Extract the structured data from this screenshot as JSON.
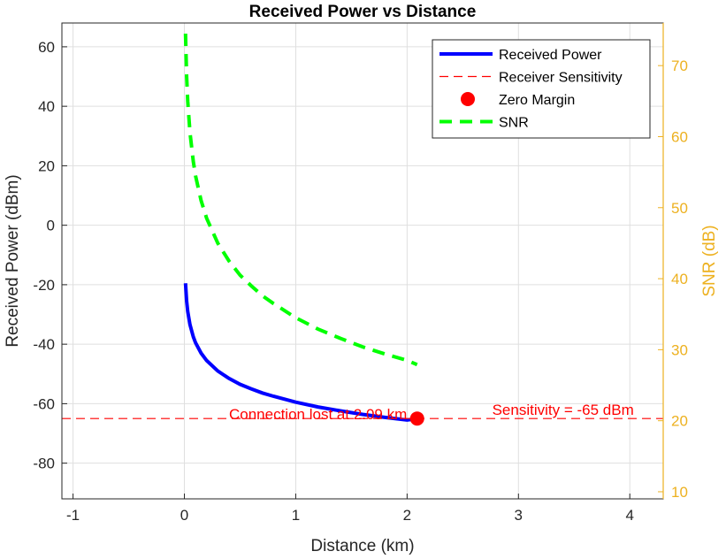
{
  "chart_data": {
    "type": "line",
    "title": "Received Power vs Distance",
    "xlabel": "Distance (km)",
    "ylabel": "Received Power (dBm)",
    "y2label": "SNR (dB)",
    "xlim": [
      -1.1,
      4.3
    ],
    "ylim": [
      -92,
      68
    ],
    "y2lim": [
      9,
      76
    ],
    "xticks": [
      -1,
      0,
      1,
      2,
      3,
      4
    ],
    "yticks": [
      -80,
      -60,
      -40,
      -20,
      0,
      20,
      40,
      60
    ],
    "y2ticks": [
      10,
      20,
      30,
      40,
      50,
      60,
      70
    ],
    "grid": true,
    "legend_position": "top-right",
    "series": [
      {
        "name": "Received Power",
        "axis": "left",
        "style": "solid",
        "color": "#0000ff",
        "x": [
          0.01,
          0.02,
          0.03,
          0.05,
          0.08,
          0.1,
          0.15,
          0.2,
          0.3,
          0.4,
          0.5,
          0.6,
          0.7,
          0.8,
          1.0,
          1.2,
          1.4,
          1.6,
          1.8,
          2.0,
          2.09
        ],
        "y": [
          -19.5,
          -25.5,
          -29.0,
          -33.4,
          -37.5,
          -39.5,
          -43.0,
          -45.5,
          -49.0,
          -51.5,
          -53.5,
          -55.0,
          -56.4,
          -57.5,
          -59.5,
          -61.1,
          -62.4,
          -63.6,
          -64.6,
          -65.5,
          -65.0
        ]
      },
      {
        "name": "Receiver Sensitivity",
        "axis": "left",
        "style": "dashed-thin",
        "color": "#ff0000",
        "x": [
          -1.1,
          4.3
        ],
        "y": [
          -65,
          -65
        ]
      },
      {
        "name": "Zero Margin",
        "axis": "left",
        "style": "marker",
        "color": "#ff0000",
        "x": [
          2.09
        ],
        "y": [
          -65
        ]
      },
      {
        "name": "SNR",
        "axis": "right",
        "style": "dashed",
        "color": "#00ff00",
        "x": [
          0.01,
          0.02,
          0.03,
          0.05,
          0.08,
          0.1,
          0.15,
          0.2,
          0.3,
          0.4,
          0.5,
          0.6,
          0.7,
          0.8,
          1.0,
          1.2,
          1.4,
          1.6,
          1.8,
          2.0,
          2.09
        ],
        "y": [
          74.5,
          68.5,
          65.0,
          60.6,
          56.5,
          54.5,
          51.0,
          48.5,
          45.0,
          42.5,
          40.5,
          39.0,
          37.6,
          36.5,
          34.5,
          32.9,
          31.6,
          30.4,
          29.4,
          28.5,
          27.9
        ]
      }
    ],
    "annotations": [
      {
        "text": "Connection lost at 2.09 km",
        "x": 1.2,
        "y": -63.5
      },
      {
        "text": "Sensitivity = -65 dBm",
        "x": 3.4,
        "y": -62
      }
    ]
  }
}
